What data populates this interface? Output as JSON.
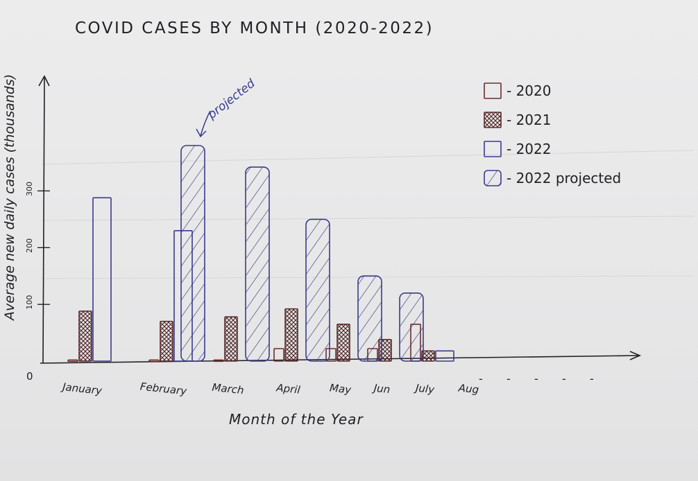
{
  "chart_data": {
    "type": "bar",
    "title": "COVID CASES BY MONTH (2020-2022)",
    "xlabel": "Month of the Year",
    "ylabel": "Average new daily cases (thousands)",
    "origin_label": "0",
    "yticks": [
      {
        "value": 100,
        "label": "100"
      },
      {
        "value": 200,
        "label": "200"
      },
      {
        "value": 300,
        "label": "300"
      }
    ],
    "ylim": [
      0,
      380
    ],
    "grid": false,
    "legend_position": "top-right",
    "categories": [
      "January",
      "February",
      "March",
      "April",
      "May",
      "Jun",
      "July",
      "Aug"
    ],
    "trailing_dashes": [
      "-",
      "-",
      "-",
      "-",
      "-"
    ],
    "series": [
      {
        "name": "2020",
        "key": "y2020",
        "values": [
          2,
          2,
          2,
          22,
          22,
          22,
          65,
          null
        ],
        "color": "#6b2d2d",
        "pattern": "none"
      },
      {
        "name": "2021",
        "key": "y2021",
        "values": [
          88,
          70,
          78,
          92,
          65,
          38,
          18,
          null
        ],
        "color": "#5a2a2a",
        "pattern": "crosshatch"
      },
      {
        "name": "2022",
        "key": "y2022",
        "values": [
          288,
          230,
          null,
          null,
          null,
          null,
          18,
          null
        ],
        "color": "#3a3a8c",
        "pattern": "none"
      },
      {
        "name": "2022 projected",
        "key": "y2022p",
        "values": [
          null,
          380,
          342,
          250,
          150,
          120,
          null,
          null
        ],
        "color": "#3a3a8c",
        "pattern": "diagonal"
      }
    ],
    "annotations": [
      {
        "text": "projected",
        "category": "February"
      }
    ]
  },
  "legend": [
    {
      "label": "- 2020",
      "series": "y2020"
    },
    {
      "label": "- 2021",
      "series": "y2021"
    },
    {
      "label": "- 2022",
      "series": "y2022"
    },
    {
      "label": "- 2022 projected",
      "series": "y2022p"
    }
  ],
  "colors": {
    "ink_dark": "#1f1f24",
    "ink_brown": "#5a2a2a",
    "ink_blue": "#3a3a8c"
  }
}
